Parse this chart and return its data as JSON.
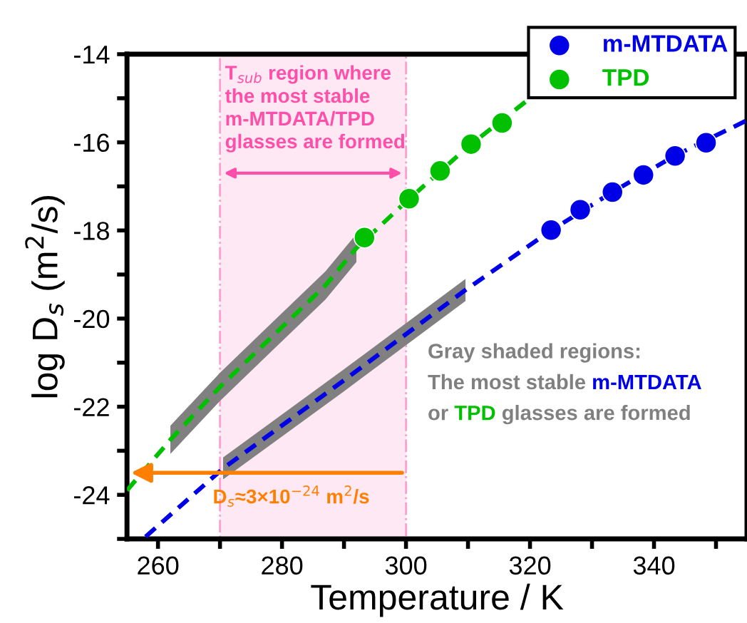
{
  "chart_data": {
    "type": "scatter",
    "xlabel": "Temperature / K",
    "ylabel": "log D$_{s}$ (m$^{2}$/s)",
    "xlim": [
      255,
      355
    ],
    "ylim": [
      -25,
      -14
    ],
    "xticks": [
      260,
      {
        "value": 270,
        "label": null
      },
      280,
      {
        "value": 290,
        "label": null
      },
      300,
      {
        "value": 310,
        "label": null
      },
      320,
      {
        "value": 330,
        "label": null
      },
      340,
      {
        "value": 350,
        "label": null
      }
    ],
    "yticks": [
      {
        "value": -25,
        "label": null
      },
      -24,
      {
        "value": -23,
        "label": null
      },
      -22,
      {
        "value": -21,
        "label": null
      },
      -20,
      {
        "value": -19,
        "label": null
      },
      -18,
      {
        "value": -17,
        "label": null
      },
      -16,
      {
        "value": -15,
        "label": null
      },
      -14
    ],
    "grid": false,
    "legend": "top right",
    "marker": "circle",
    "series": [
      {
        "type": "line",
        "line_style": "dashed",
        "marker": "none",
        "color": "#00c000",
        "x": [
          255,
          262,
          270,
          277,
          287,
          292,
          300,
          310,
          320
        ],
        "values": [
          -23.9,
          -22.75,
          -21.55,
          -20.6,
          -19.25,
          -18.4,
          -17.35,
          -16.1,
          -15.0
        ],
        "lower": [
          null,
          -23.07,
          -21.87,
          -20.92,
          -19.57,
          -18.72,
          null,
          null,
          null
        ],
        "upper": [
          null,
          -22.43,
          -21.23,
          -20.28,
          -18.93,
          -18.08,
          null,
          null,
          null
        ]
      },
      {
        "type": "line",
        "line_style": "dashed",
        "marker": "none",
        "color": "#0000e6",
        "x": [
          258,
          270.5,
          290,
          309.6,
          323.4,
          333.3,
          343.4,
          355
        ],
        "values": [
          -24.95,
          -23.4,
          -21.4,
          -19.35,
          -18.0,
          -17.13,
          -16.3,
          -15.5
        ],
        "lower": [
          null,
          -23.65,
          -21.65,
          -19.6,
          null,
          null,
          null,
          null
        ],
        "upper": [
          null,
          -23.15,
          -21.15,
          -19.1,
          null,
          null,
          null,
          null
        ]
      },
      {
        "name": "m-MTDATA",
        "color": "#0000e6",
        "x": [
          323.4,
          328.1,
          333.3,
          338.3,
          343.4,
          348.4
        ],
        "values": [
          -17.99,
          -17.53,
          -17.13,
          -16.74,
          -16.31,
          -16.01
        ]
      },
      {
        "name": "TPD",
        "color": "#00c000",
        "x": [
          293.3,
          300.5,
          305.5,
          310.5,
          315.5
        ],
        "values": [
          -18.16,
          -17.28,
          -16.65,
          -16.04,
          -15.56
        ]
      }
    ],
    "bands": [
      {
        "axis": "x",
        "from": 270,
        "to": 300,
        "color": "#fde8f4",
        "label": "T$_{sub}$ region where\nthe most stable\nm-MTDATA/TPD\nglasses are formed"
      }
    ],
    "annotations": [
      {
        "text": "D$_{s}$≈3×10$^{−24}$ m$^{2}$/s",
        "x": 300,
        "y": -23.5
      },
      "Gray shaded regions:",
      "The most stable ",
      "m-MTDATA",
      "or ",
      "TPD",
      " glasses are formed"
    ]
  }
}
